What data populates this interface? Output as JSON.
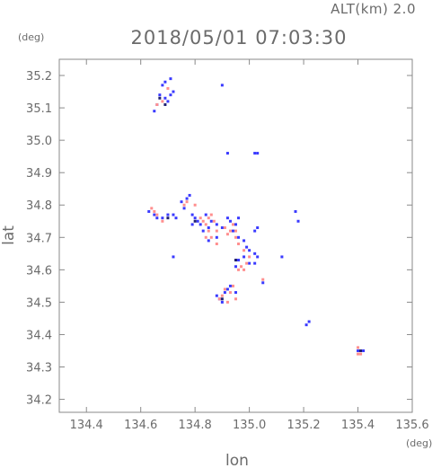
{
  "header": {
    "altitude_label": "ALT(km) 2.0",
    "timestamp": "2018/05/01 07:03:30"
  },
  "chart_data": {
    "type": "scatter",
    "title": "2018/05/01 07:03:30",
    "xlabel": "lon",
    "ylabel": "lat",
    "x_unit": "(deg)",
    "y_unit": "(deg)",
    "xlim": [
      134.3,
      135.6
    ],
    "ylim": [
      34.16,
      35.25
    ],
    "xticks": [
      "134.4",
      "134.6",
      "134.8",
      "135.0",
      "135.2",
      "135.4",
      "135.6"
    ],
    "yticks": [
      "34.2",
      "34.3",
      "34.4",
      "34.5",
      "34.6",
      "34.7",
      "34.8",
      "34.9",
      "35.0",
      "35.1",
      "35.2"
    ],
    "grid": false,
    "colors": {
      "blue": "#3a3aff",
      "red": "#ff8f8f",
      "navy": "#202070",
      "axis": "#8a8a8a"
    },
    "series": [
      {
        "color": "blue",
        "points": [
          [
            134.69,
            35.18
          ],
          [
            134.71,
            35.19
          ],
          [
            134.68,
            35.17
          ],
          [
            134.67,
            35.14
          ],
          [
            134.69,
            35.13
          ],
          [
            134.71,
            35.14
          ],
          [
            134.72,
            35.15
          ],
          [
            134.7,
            35.12
          ],
          [
            134.66,
            35.11
          ],
          [
            134.65,
            35.09
          ],
          [
            134.9,
            35.17
          ],
          [
            135.02,
            34.96
          ],
          [
            135.03,
            34.96
          ],
          [
            134.92,
            34.96
          ],
          [
            134.63,
            34.78
          ],
          [
            134.65,
            34.77
          ],
          [
            134.66,
            34.76
          ],
          [
            134.68,
            34.76
          ],
          [
            134.7,
            34.77
          ],
          [
            134.72,
            34.77
          ],
          [
            134.73,
            34.76
          ],
          [
            134.75,
            34.81
          ],
          [
            134.77,
            34.82
          ],
          [
            134.78,
            34.83
          ],
          [
            134.76,
            34.79
          ],
          [
            134.79,
            34.77
          ],
          [
            134.8,
            34.76
          ],
          [
            134.81,
            34.75
          ],
          [
            134.82,
            34.74
          ],
          [
            134.79,
            34.74
          ],
          [
            134.83,
            34.72
          ],
          [
            134.85,
            34.73
          ],
          [
            134.86,
            34.75
          ],
          [
            134.88,
            34.74
          ],
          [
            134.9,
            34.73
          ],
          [
            134.92,
            34.76
          ],
          [
            134.93,
            34.75
          ],
          [
            134.95,
            34.74
          ],
          [
            134.96,
            34.76
          ],
          [
            134.94,
            34.72
          ],
          [
            134.96,
            34.7
          ],
          [
            134.98,
            34.69
          ],
          [
            134.99,
            34.67
          ],
          [
            135.0,
            34.66
          ],
          [
            135.02,
            34.65
          ],
          [
            135.03,
            34.64
          ],
          [
            135.02,
            34.62
          ],
          [
            135.0,
            34.62
          ],
          [
            134.98,
            34.64
          ],
          [
            134.96,
            34.63
          ],
          [
            134.95,
            34.61
          ],
          [
            135.02,
            34.72
          ],
          [
            135.03,
            34.73
          ],
          [
            135.12,
            34.64
          ],
          [
            135.17,
            34.78
          ],
          [
            135.18,
            34.75
          ],
          [
            134.72,
            34.64
          ],
          [
            134.85,
            34.69
          ],
          [
            134.88,
            34.7
          ],
          [
            134.84,
            34.77
          ],
          [
            134.88,
            34.52
          ],
          [
            134.89,
            34.51
          ],
          [
            134.91,
            34.53
          ],
          [
            134.92,
            34.54
          ],
          [
            134.93,
            34.55
          ],
          [
            134.9,
            34.5
          ],
          [
            134.95,
            34.53
          ],
          [
            135.05,
            34.56
          ],
          [
            135.22,
            34.44
          ],
          [
            135.21,
            34.43
          ],
          [
            135.4,
            34.35
          ],
          [
            135.41,
            34.35
          ],
          [
            135.42,
            34.35
          ]
        ]
      },
      {
        "color": "red",
        "points": [
          [
            134.68,
            35.12
          ],
          [
            134.66,
            35.11
          ],
          [
            134.7,
            35.16
          ],
          [
            134.64,
            34.79
          ],
          [
            134.65,
            34.78
          ],
          [
            134.66,
            34.77
          ],
          [
            134.68,
            34.75
          ],
          [
            134.76,
            34.8
          ],
          [
            134.77,
            34.81
          ],
          [
            134.82,
            34.76
          ],
          [
            134.83,
            34.75
          ],
          [
            134.84,
            34.74
          ],
          [
            134.85,
            34.72
          ],
          [
            134.86,
            34.7
          ],
          [
            134.88,
            34.72
          ],
          [
            134.85,
            34.76
          ],
          [
            134.86,
            34.77
          ],
          [
            134.87,
            34.75
          ],
          [
            134.91,
            34.73
          ],
          [
            134.93,
            34.72
          ],
          [
            134.95,
            34.7
          ],
          [
            134.96,
            34.68
          ],
          [
            134.98,
            34.66
          ],
          [
            135.0,
            34.64
          ],
          [
            134.97,
            34.61
          ],
          [
            134.96,
            34.6
          ],
          [
            134.98,
            34.6
          ],
          [
            134.99,
            34.62
          ],
          [
            134.88,
            34.68
          ],
          [
            134.84,
            34.7
          ],
          [
            134.8,
            34.8
          ],
          [
            134.94,
            34.74
          ],
          [
            134.95,
            34.72
          ],
          [
            134.92,
            34.71
          ],
          [
            134.89,
            34.51
          ],
          [
            134.9,
            34.52
          ],
          [
            134.91,
            34.54
          ],
          [
            134.93,
            34.53
          ],
          [
            134.94,
            34.55
          ],
          [
            134.92,
            34.5
          ],
          [
            134.95,
            34.51
          ],
          [
            135.05,
            34.57
          ],
          [
            135.4,
            34.34
          ],
          [
            135.41,
            34.34
          ],
          [
            135.4,
            34.36
          ]
        ]
      },
      {
        "color": "navy",
        "points": [
          [
            134.67,
            35.13
          ],
          [
            134.69,
            35.11
          ],
          [
            134.7,
            34.76
          ],
          [
            134.8,
            34.75
          ],
          [
            134.95,
            34.63
          ],
          [
            134.9,
            34.51
          ],
          [
            135.41,
            34.35
          ]
        ]
      }
    ]
  }
}
